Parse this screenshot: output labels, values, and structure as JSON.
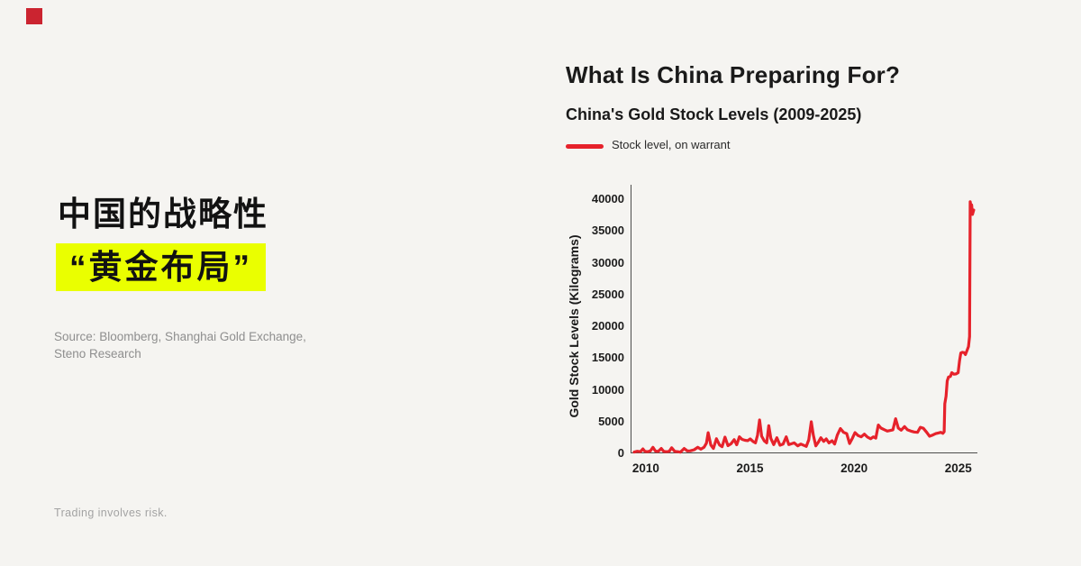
{
  "page": {
    "background": "#f5f4f1",
    "logo_color": "#cb2430"
  },
  "left_panel": {
    "headline_line1": "中国的战略性",
    "headline_line2": "“黄金布局”",
    "highlight_color": "#eaff00",
    "source_line1": "Source: Bloomberg, Shanghai Gold Exchange,",
    "source_line2": "Steno Research",
    "disclaimer": "Trading involves risk."
  },
  "chart_panel": {
    "title": "What Is China Preparing For?",
    "subtitle": "China's Gold Stock Levels (2009-2025)",
    "legend_label": "Stock level, on warrant"
  },
  "chart_data": {
    "type": "line",
    "title": "China's Gold Stock Levels (2009-2025)",
    "xlabel": "",
    "ylabel": "Gold Stock Levels (Kilograms)",
    "xlim": [
      2009.27,
      2025.92
    ],
    "ylim": [
      0,
      40000
    ],
    "x_ticks": [
      2010,
      2015,
      2020,
      2025
    ],
    "y_ticks": [
      0,
      5000,
      10000,
      15000,
      20000,
      25000,
      30000,
      35000,
      40000
    ],
    "grid": false,
    "legend_position": "top-left-above-plot",
    "series": [
      {
        "name": "Stock level, on warrant",
        "color": "#e6222b",
        "points": [
          [
            2009.4,
            200
          ],
          [
            2009.55,
            320
          ],
          [
            2009.7,
            250
          ],
          [
            2009.82,
            700
          ],
          [
            2009.92,
            300
          ],
          [
            2010.05,
            260
          ],
          [
            2010.18,
            380
          ],
          [
            2010.3,
            950
          ],
          [
            2010.42,
            350
          ],
          [
            2010.55,
            300
          ],
          [
            2010.7,
            760
          ],
          [
            2010.82,
            300
          ],
          [
            2010.95,
            250
          ],
          [
            2011.08,
            310
          ],
          [
            2011.2,
            880
          ],
          [
            2011.35,
            300
          ],
          [
            2011.5,
            250
          ],
          [
            2011.62,
            180
          ],
          [
            2011.8,
            760
          ],
          [
            2011.95,
            380
          ],
          [
            2012.1,
            400
          ],
          [
            2012.28,
            570
          ],
          [
            2012.45,
            950
          ],
          [
            2012.6,
            650
          ],
          [
            2012.75,
            950
          ],
          [
            2012.87,
            1600
          ],
          [
            2012.95,
            3250
          ],
          [
            2013.08,
            1300
          ],
          [
            2013.2,
            760
          ],
          [
            2013.35,
            2300
          ],
          [
            2013.5,
            1300
          ],
          [
            2013.62,
            1050
          ],
          [
            2013.76,
            2550
          ],
          [
            2013.9,
            1200
          ],
          [
            2014.05,
            1500
          ],
          [
            2014.2,
            2150
          ],
          [
            2014.32,
            1350
          ],
          [
            2014.45,
            2600
          ],
          [
            2014.58,
            2200
          ],
          [
            2014.72,
            2050
          ],
          [
            2014.85,
            2000
          ],
          [
            2014.97,
            2270
          ],
          [
            2015.1,
            1890
          ],
          [
            2015.22,
            1650
          ],
          [
            2015.32,
            2840
          ],
          [
            2015.42,
            5250
          ],
          [
            2015.52,
            2700
          ],
          [
            2015.65,
            1950
          ],
          [
            2015.76,
            1650
          ],
          [
            2015.86,
            4350
          ],
          [
            2015.96,
            2360
          ],
          [
            2016.1,
            1370
          ],
          [
            2016.25,
            2460
          ],
          [
            2016.4,
            1280
          ],
          [
            2016.55,
            1460
          ],
          [
            2016.7,
            2600
          ],
          [
            2016.82,
            1370
          ],
          [
            2016.95,
            1500
          ],
          [
            2017.08,
            1650
          ],
          [
            2017.25,
            1180
          ],
          [
            2017.4,
            1460
          ],
          [
            2017.55,
            1250
          ],
          [
            2017.66,
            1090
          ],
          [
            2017.78,
            2130
          ],
          [
            2017.9,
            4960
          ],
          [
            2018.0,
            2840
          ],
          [
            2018.12,
            1180
          ],
          [
            2018.25,
            1800
          ],
          [
            2018.36,
            2460
          ],
          [
            2018.5,
            1890
          ],
          [
            2018.62,
            2270
          ],
          [
            2018.75,
            1650
          ],
          [
            2018.9,
            1980
          ],
          [
            2019.02,
            1460
          ],
          [
            2019.15,
            2880
          ],
          [
            2019.3,
            3900
          ],
          [
            2019.45,
            3300
          ],
          [
            2019.6,
            3100
          ],
          [
            2019.74,
            1550
          ],
          [
            2019.88,
            2400
          ],
          [
            2020.0,
            3260
          ],
          [
            2020.15,
            2790
          ],
          [
            2020.3,
            2600
          ],
          [
            2020.45,
            3020
          ],
          [
            2020.6,
            2550
          ],
          [
            2020.75,
            2300
          ],
          [
            2020.88,
            2600
          ],
          [
            2021.0,
            2400
          ],
          [
            2021.12,
            4450
          ],
          [
            2021.25,
            3970
          ],
          [
            2021.4,
            3730
          ],
          [
            2021.55,
            3500
          ],
          [
            2021.7,
            3600
          ],
          [
            2021.82,
            3700
          ],
          [
            2021.95,
            5450
          ],
          [
            2022.08,
            3970
          ],
          [
            2022.22,
            3640
          ],
          [
            2022.38,
            4210
          ],
          [
            2022.52,
            3700
          ],
          [
            2022.68,
            3500
          ],
          [
            2022.84,
            3360
          ],
          [
            2023.0,
            3300
          ],
          [
            2023.14,
            4100
          ],
          [
            2023.28,
            3950
          ],
          [
            2023.44,
            3300
          ],
          [
            2023.58,
            2700
          ],
          [
            2023.74,
            2900
          ],
          [
            2023.88,
            3100
          ],
          [
            2024.0,
            3200
          ],
          [
            2024.12,
            3300
          ],
          [
            2024.22,
            3150
          ],
          [
            2024.28,
            3400
          ],
          [
            2024.31,
            7800
          ],
          [
            2024.37,
            9000
          ],
          [
            2024.43,
            11400
          ],
          [
            2024.49,
            12000
          ],
          [
            2024.58,
            12100
          ],
          [
            2024.65,
            12700
          ],
          [
            2024.75,
            12450
          ],
          [
            2024.85,
            12500
          ],
          [
            2024.95,
            12700
          ],
          [
            2025.02,
            14600
          ],
          [
            2025.08,
            15800
          ],
          [
            2025.16,
            15900
          ],
          [
            2025.24,
            15850
          ],
          [
            2025.3,
            15550
          ],
          [
            2025.38,
            16200
          ],
          [
            2025.45,
            16800
          ],
          [
            2025.5,
            18400
          ],
          [
            2025.53,
            39600
          ],
          [
            2025.57,
            38800
          ],
          [
            2025.6,
            39100
          ],
          [
            2025.64,
            37600
          ],
          [
            2025.7,
            38300
          ]
        ]
      }
    ]
  }
}
